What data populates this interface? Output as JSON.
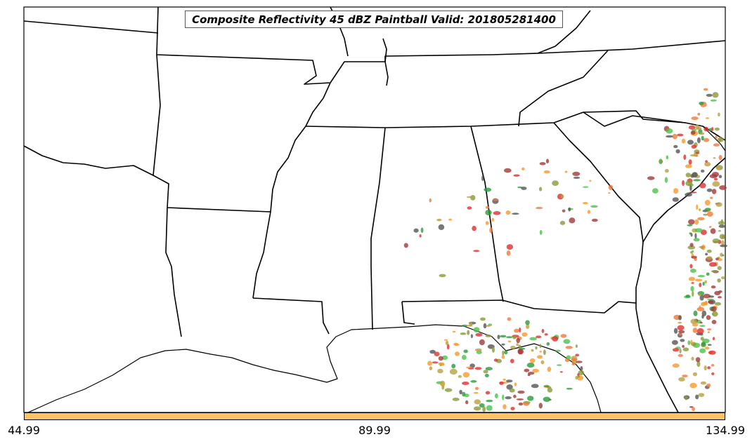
{
  "title": "Composite Reflectivity 45 dBZ Paintball Valid: 201805281400",
  "colorbar": {
    "color": "#ffc266",
    "tick_labels": [
      "44.99",
      "89.99",
      "134.99"
    ]
  },
  "colors": {
    "background": "#ffffff",
    "outline": "#000000",
    "paintball_palette": [
      "#e03030",
      "#f07a3a",
      "#f59a2a",
      "#8a9a3a",
      "#4cc24c",
      "#2a9a3a",
      "#a03a3a",
      "#555555",
      "#b8a040"
    ]
  }
}
